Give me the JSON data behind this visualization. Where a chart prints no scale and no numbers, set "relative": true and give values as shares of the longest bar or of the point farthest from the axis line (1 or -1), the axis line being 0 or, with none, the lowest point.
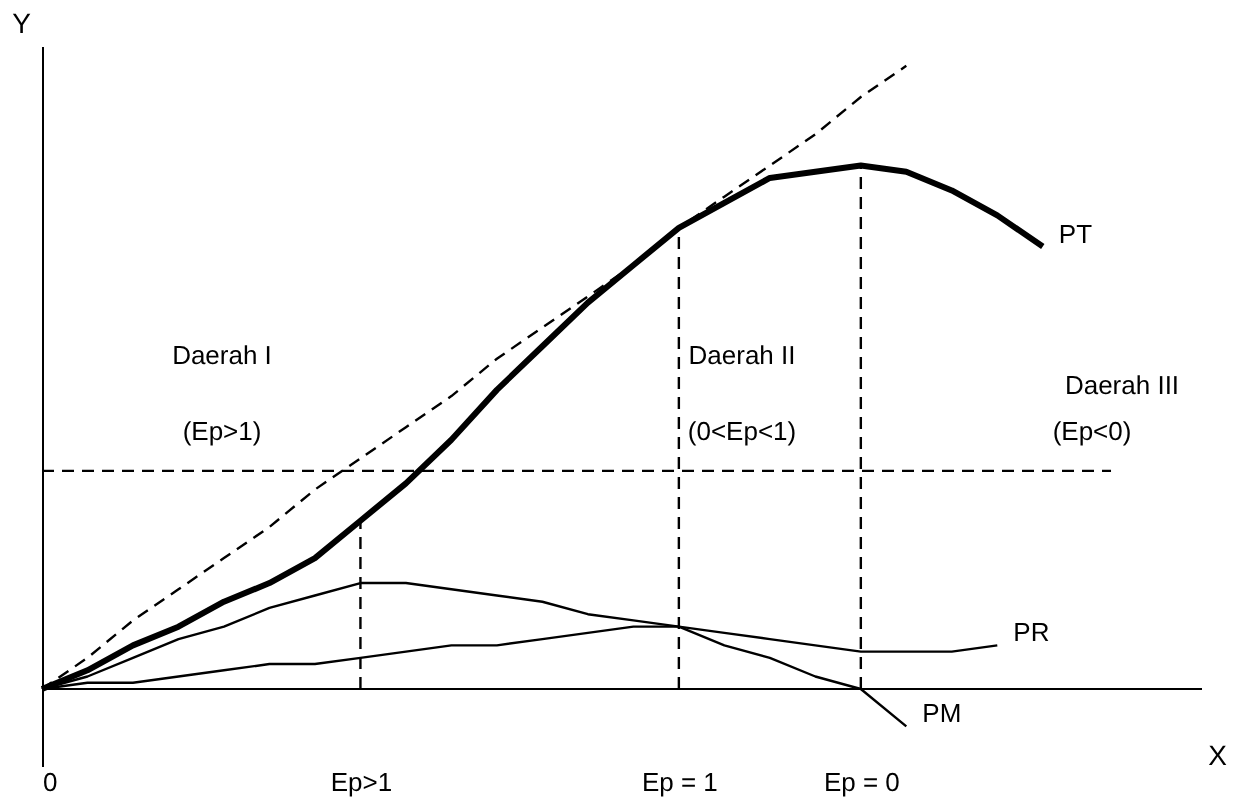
{
  "chart_data": {
    "type": "line",
    "relative": true,
    "xlabel": "X",
    "ylabel": "Y",
    "categories": [
      "0",
      null,
      null,
      null,
      null,
      null,
      null,
      "Ep>1",
      null,
      null,
      null,
      null,
      null,
      null,
      "Ep = 1",
      null,
      null,
      null,
      "Ep = 0",
      null,
      null,
      null,
      null,
      null,
      null,
      null
    ],
    "series": [
      {
        "name": "PT",
        "color": "#000000",
        "values": [
          0,
          0.03,
          0.07,
          0.1,
          0.14,
          0.17,
          0.21,
          0.27,
          0.33,
          0.4,
          0.48,
          0.55,
          0.62,
          0.68,
          0.74,
          0.78,
          0.82,
          0.83,
          0.84,
          0.83,
          0.8,
          0.76,
          0.71,
          null,
          null,
          null
        ]
      },
      {
        "name": "PM",
        "color": "#000000",
        "values": [
          0,
          0.02,
          0.05,
          0.08,
          0.1,
          0.13,
          0.15,
          0.17,
          0.17,
          0.16,
          0.15,
          0.14,
          0.12,
          0.11,
          0.1,
          0.07,
          0.05,
          0.02,
          0,
          -0.06,
          null,
          null,
          null,
          null,
          null,
          null
        ]
      },
      {
        "name": "PR",
        "color": "#000000",
        "values": [
          0,
          0.01,
          0.01,
          0.02,
          0.03,
          0.04,
          0.04,
          0.05,
          0.06,
          0.07,
          0.07,
          0.08,
          0.09,
          0.1,
          0.1,
          0.09,
          0.08,
          0.07,
          0.06,
          0.06,
          0.06,
          0.07,
          null,
          null,
          null,
          null
        ]
      },
      {
        "color": "#000000",
        "line_style": "dashed",
        "values": [
          0,
          0.05,
          0.11,
          0.16,
          0.21,
          0.26,
          0.32,
          0.37,
          0.42,
          0.47,
          0.53,
          0.58,
          0.63,
          0.68,
          0.74,
          0.79,
          0.84,
          0.89,
          0.95,
          1,
          null,
          null,
          null,
          null,
          null,
          null
        ]
      }
    ],
    "ref_lines": [
      {
        "axis": "x",
        "value": "Ep>1",
        "line_style": "dashed"
      },
      {
        "axis": "x",
        "value": "Ep = 1",
        "line_style": "dashed"
      },
      {
        "axis": "x",
        "value": "Ep = 0",
        "line_style": "dashed"
      },
      {
        "axis": "y",
        "value": 0.35,
        "line_style": "dashed"
      }
    ],
    "annotations": [
      "Daerah I",
      "(Ep>1)",
      "Daerah II",
      "(0<Ep<1)",
      "Daerah III",
      "(Ep<0)"
    ]
  }
}
